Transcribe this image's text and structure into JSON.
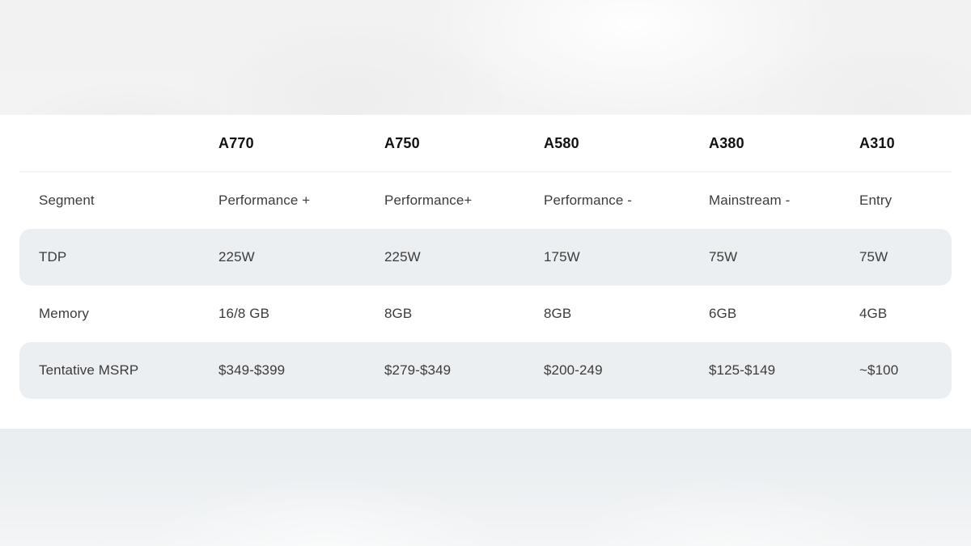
{
  "chart_data": {
    "type": "table",
    "columns": [
      "",
      "A770",
      "A750",
      "A580",
      "A380",
      "A310"
    ],
    "rows": [
      {
        "label": "Segment",
        "values": [
          "Performance +",
          "Performance+",
          "Performance -",
          "Mainstream -",
          "Entry"
        ]
      },
      {
        "label": "TDP",
        "values": [
          "225W",
          "225W",
          "175W",
          "75W",
          "75W"
        ]
      },
      {
        "label": "Memory",
        "values": [
          "16/8 GB",
          "8GB",
          "8GB",
          "6GB",
          "4GB"
        ]
      },
      {
        "label": "Tentative MSRP",
        "values": [
          "$349-$399",
          "$279-$349",
          "$200-249",
          "$125-$149",
          "~$100"
        ]
      }
    ],
    "highlighted_rows": [
      "TDP",
      "Tentative MSRP"
    ],
    "legend_position": "none",
    "grid": false
  },
  "colors": {
    "row_highlight": "#ebeff2",
    "header_text": "#121212",
    "body_text": "#3c3c3c",
    "card_background": "#ffffff",
    "page_background_top": "#f2f2f2",
    "page_background_bottom": "#edf0f2",
    "divider": "#ededed"
  }
}
